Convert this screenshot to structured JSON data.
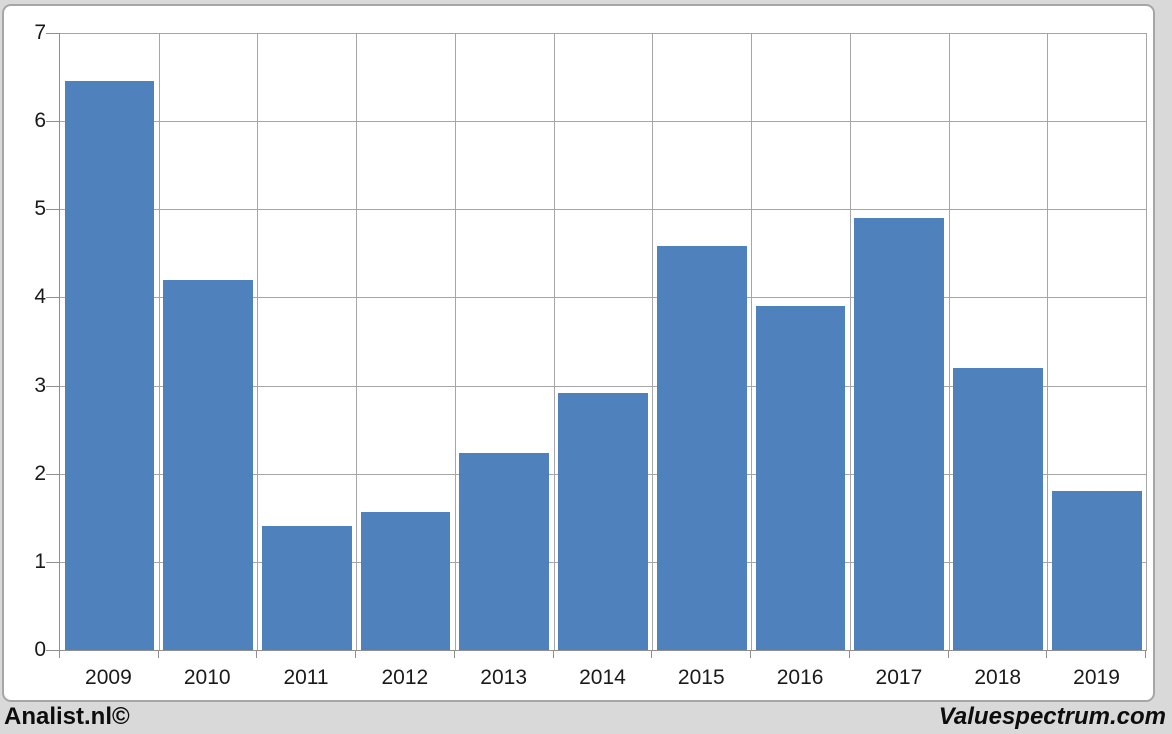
{
  "chart_data": {
    "type": "bar",
    "categories": [
      "2009",
      "2010",
      "2011",
      "2012",
      "2013",
      "2014",
      "2015",
      "2016",
      "2017",
      "2018",
      "2019"
    ],
    "values": [
      6.45,
      4.2,
      1.41,
      1.57,
      2.23,
      2.92,
      4.58,
      3.9,
      4.9,
      3.2,
      1.8
    ],
    "title": "",
    "xlabel": "",
    "ylabel": "",
    "ylim": [
      0,
      7
    ],
    "yticks": [
      0,
      1,
      2,
      3,
      4,
      5,
      6,
      7
    ],
    "grid": true,
    "legend": "none",
    "bar_color": "#4F81BD"
  },
  "footer": {
    "left_text": "Analist.nl©",
    "right_text": "Valuespectrum.com"
  },
  "colors": {
    "page_background": "#D9D9D9",
    "panel_background": "#FFFFFF",
    "panel_border": "#A6A6A6",
    "gridline": "#A6A6A6",
    "axis_line": "#8F8F8F",
    "axis_text": "#1A1A1A",
    "footer_text": "#0D0D0D"
  }
}
